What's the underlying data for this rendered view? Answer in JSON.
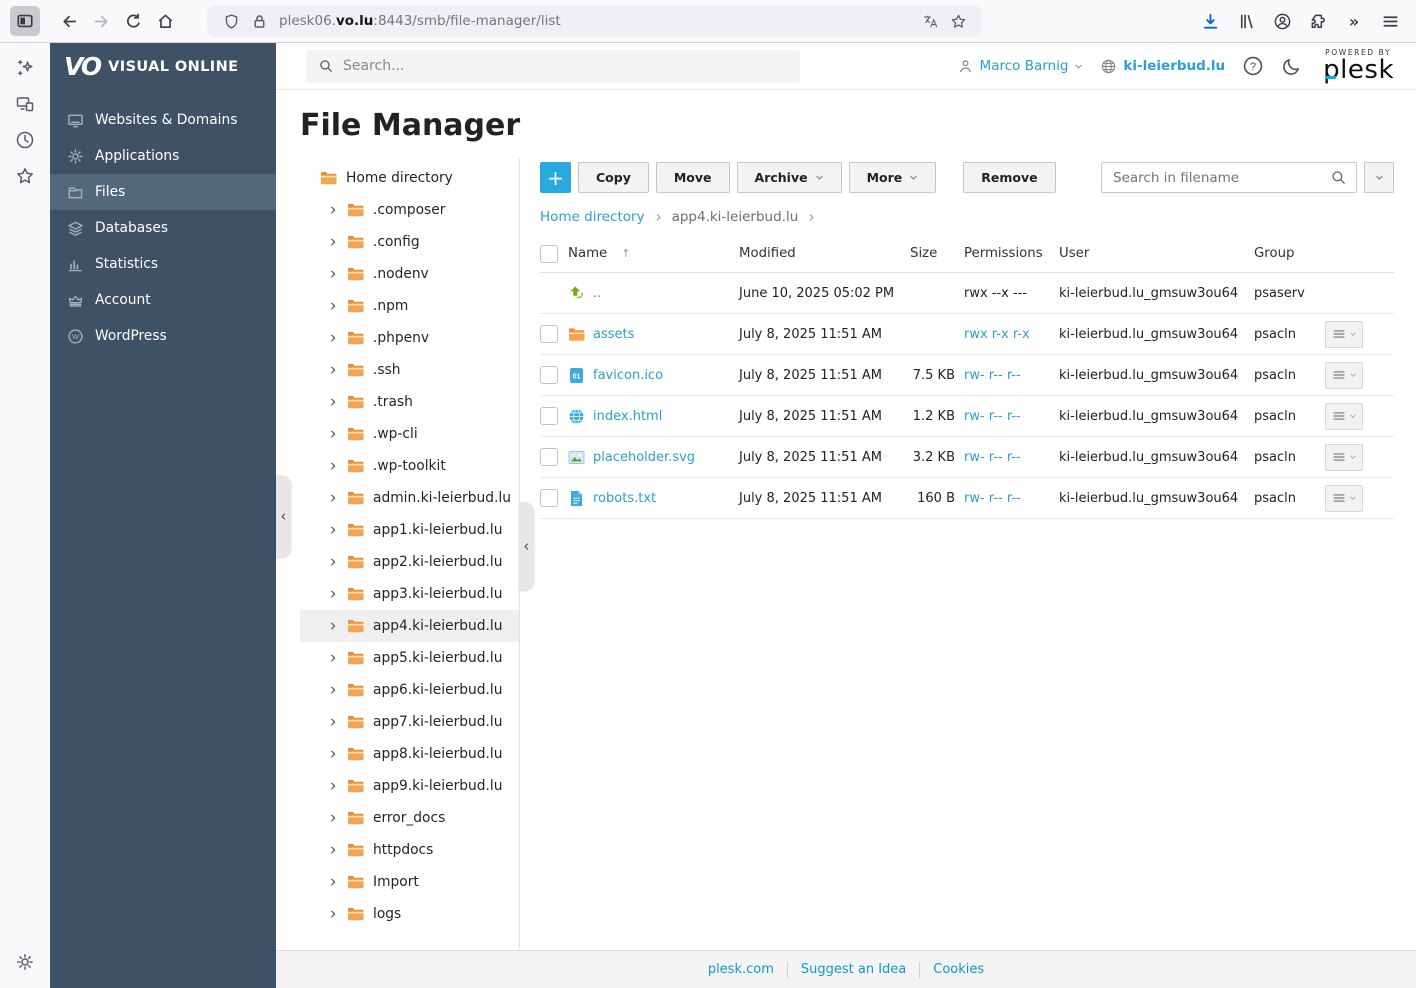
{
  "browser": {
    "url_prefix": "plesk06.",
    "url_domain": "vo.lu",
    "url_suffix": ":8443/smb/file-manager/list",
    "overflow_glyph": "»"
  },
  "brand": {
    "mark": "VO",
    "name": "VISUAL ONLINE"
  },
  "plesk_header": {
    "search_placeholder": "Search...",
    "user_name": "Marco Barnig",
    "site_domain": "ki-leierbud.lu",
    "powered_by": "POWERED BY",
    "logo": "plesk"
  },
  "sidebar": {
    "items": [
      {
        "label": "Websites & Domains",
        "icon": "monitor",
        "selected": false
      },
      {
        "label": "Applications",
        "icon": "gear",
        "selected": false
      },
      {
        "label": "Files",
        "icon": "files",
        "selected": true
      },
      {
        "label": "Databases",
        "icon": "layers",
        "selected": false
      },
      {
        "label": "Statistics",
        "icon": "chart",
        "selected": false
      },
      {
        "label": "Account",
        "icon": "crown",
        "selected": false
      },
      {
        "label": "WordPress",
        "icon": "wordpress",
        "selected": false
      }
    ]
  },
  "page": {
    "title": "File Manager"
  },
  "tree": {
    "root": "Home directory",
    "selected": "app4.ki-leierbud.lu",
    "items": [
      ".composer",
      ".config",
      ".nodenv",
      ".npm",
      ".phpenv",
      ".ssh",
      ".trash",
      ".wp-cli",
      ".wp-toolkit",
      "admin.ki-leierbud.lu",
      "app1.ki-leierbud.lu",
      "app2.ki-leierbud.lu",
      "app3.ki-leierbud.lu",
      "app4.ki-leierbud.lu",
      "app5.ki-leierbud.lu",
      "app6.ki-leierbud.lu",
      "app7.ki-leierbud.lu",
      "app8.ki-leierbud.lu",
      "app9.ki-leierbud.lu",
      "error_docs",
      "httpdocs",
      "Import",
      "logs"
    ]
  },
  "toolbar": {
    "add": "+",
    "buttons": [
      {
        "label": "Copy",
        "dropdown": false
      },
      {
        "label": "Move",
        "dropdown": false
      },
      {
        "label": "Archive",
        "dropdown": true
      },
      {
        "label": "More",
        "dropdown": true
      },
      {
        "label": "Remove",
        "dropdown": false
      }
    ],
    "search_placeholder": "Search in filename"
  },
  "breadcrumb": {
    "home": "Home directory",
    "current": "app4.ki-leierbud.lu"
  },
  "file_table": {
    "columns": {
      "name": "Name",
      "modified": "Modified",
      "size": "Size",
      "permissions": "Permissions",
      "user": "User",
      "group": "Group"
    },
    "sort_arrow": "↑",
    "rows": [
      {
        "name": "..",
        "icon": "up",
        "modified": "June 10, 2025 05:02 PM",
        "size": "",
        "permissions": "rwx --x ---",
        "permissions_link": false,
        "user": "ki-leierbud.lu_gmsuw3ou64",
        "group": "psaserv",
        "checkbox": false,
        "menu": false
      },
      {
        "name": "assets",
        "icon": "folder",
        "modified": "July 8, 2025 11:51 AM",
        "size": "",
        "permissions": "rwx r-x r-x",
        "permissions_link": true,
        "user": "ki-leierbud.lu_gmsuw3ou64",
        "group": "psacln",
        "checkbox": true,
        "menu": true
      },
      {
        "name": "favicon.ico",
        "icon": "ico",
        "modified": "July 8, 2025 11:51 AM",
        "size": "7.5 KB",
        "permissions": "rw- r-- r--",
        "permissions_link": true,
        "user": "ki-leierbud.lu_gmsuw3ou64",
        "group": "psacln",
        "checkbox": true,
        "menu": true
      },
      {
        "name": "index.html",
        "icon": "html",
        "modified": "July 8, 2025 11:51 AM",
        "size": "1.2 KB",
        "permissions": "rw- r-- r--",
        "permissions_link": true,
        "user": "ki-leierbud.lu_gmsuw3ou64",
        "group": "psacln",
        "checkbox": true,
        "menu": true
      },
      {
        "name": "placeholder.svg",
        "icon": "image",
        "modified": "July 8, 2025 11:51 AM",
        "size": "3.2 KB",
        "permissions": "rw- r-- r--",
        "permissions_link": true,
        "user": "ki-leierbud.lu_gmsuw3ou64",
        "group": "psacln",
        "checkbox": true,
        "menu": true
      },
      {
        "name": "robots.txt",
        "icon": "text",
        "modified": "July 8, 2025 11:51 AM",
        "size": "160 B",
        "permissions": "rw- r-- r--",
        "permissions_link": true,
        "user": "ki-leierbud.lu_gmsuw3ou64",
        "group": "psacln",
        "checkbox": true,
        "menu": true
      }
    ]
  },
  "footer": {
    "links": [
      "plesk.com",
      "Suggest an Idea",
      "Cookies"
    ]
  },
  "colors": {
    "accent_blue": "#28aade",
    "link_blue": "#2a9fd8",
    "sidebar_bg": "#3e5165",
    "sidebar_selected": "#54687c",
    "folder_orange": "#f5a54f",
    "download_blue": "#0060df",
    "plesk_cyan": "#00b3e3"
  }
}
